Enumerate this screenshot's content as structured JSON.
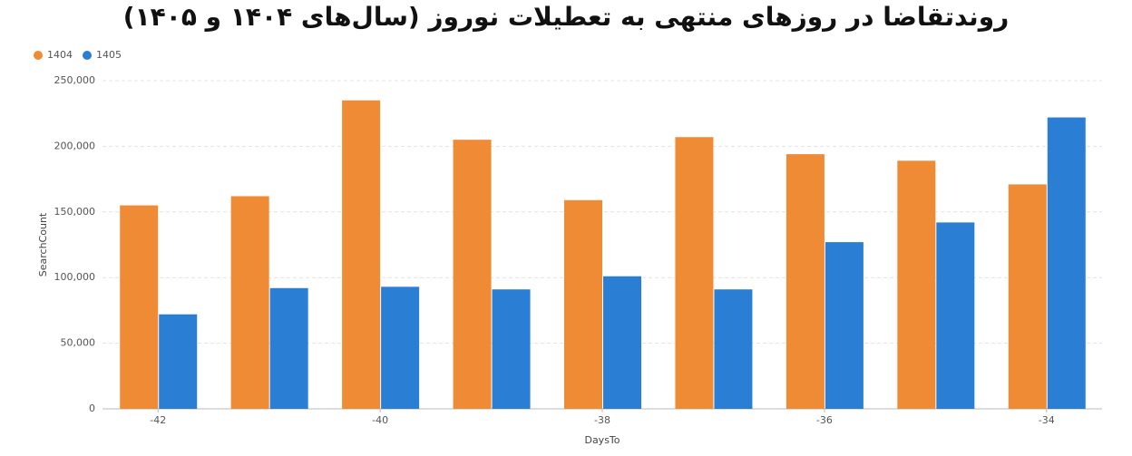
{
  "chart_data": {
    "type": "bar",
    "title": "روندتقاضا در روزهای منتهی به تعطیلات نوروز (سال‌های ۱۴۰۴ و ۱۴۰۵)",
    "x_label": "DaysTo",
    "y_label": "SearchCount",
    "categories": [
      "-42",
      null,
      "-40",
      null,
      "-38",
      null,
      "-36",
      null,
      "-34"
    ],
    "series": [
      {
        "name": "1404",
        "color": "#ef8a35",
        "values": [
          155000,
          162000,
          235000,
          205000,
          159000,
          207000,
          194000,
          189000,
          171000
        ]
      },
      {
        "name": "1405",
        "color": "#2a7fd4",
        "values": [
          72000,
          92000,
          93000,
          91000,
          101000,
          91000,
          127000,
          142000,
          222000
        ]
      }
    ],
    "ylim": [
      0,
      250000
    ],
    "yticks": [
      0,
      {
        "value": 50000,
        "label": "50,000"
      },
      {
        "value": 100000,
        "label": "100,000"
      },
      {
        "value": 150000,
        "label": "150,000"
      },
      {
        "value": 200000,
        "label": "200,000"
      },
      {
        "value": 250000,
        "label": "250,000"
      }
    ],
    "grid": true,
    "legend": "top-left"
  }
}
